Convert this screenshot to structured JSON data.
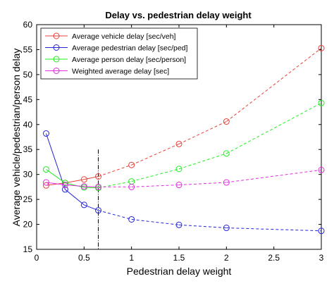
{
  "chart_data": {
    "type": "line",
    "title": "Delay vs. pedestrian delay weight",
    "xlabel": "Pedestrian delay weight",
    "ylabel": "Average vehicle/pedestrian/person delay",
    "xlim": [
      0,
      3
    ],
    "ylim": [
      15,
      60
    ],
    "xticks": [
      0,
      0.5,
      1,
      1.5,
      2,
      2.5,
      3
    ],
    "xtick_labels": [
      "0",
      "0.5",
      "1",
      "1.5",
      "2",
      "2.5",
      "3"
    ],
    "yticks": [
      15,
      20,
      25,
      30,
      35,
      40,
      45,
      50,
      55,
      60
    ],
    "ytick_labels": [
      "15",
      "20",
      "25",
      "30",
      "35",
      "40",
      "45",
      "50",
      "55",
      "60"
    ],
    "grid": false,
    "legend_position": "top-left",
    "vertical_marker_x": 0.65,
    "x": [
      0.1,
      0.3,
      0.5,
      0.65,
      1,
      1.5,
      2,
      3
    ],
    "series": [
      {
        "name": "Average vehicle delay [sec/veh]",
        "color": "#e8413a",
        "values": [
          27.8,
          28.3,
          29.0,
          29.6,
          31.9,
          36.1,
          40.6,
          55.3
        ]
      },
      {
        "name": "Average pedestrian delay [sec/ped]",
        "color": "#2424d8",
        "values": [
          38.2,
          27.0,
          23.9,
          22.8,
          21.0,
          19.9,
          19.3,
          18.7
        ]
      },
      {
        "name": "Average person delay [sec/person]",
        "color": "#22ee22",
        "values": [
          31.0,
          28.3,
          27.4,
          27.3,
          28.6,
          31.1,
          34.2,
          44.3
        ]
      },
      {
        "name": "Weighted average delay [sec]",
        "color": "#e02de0",
        "values": [
          28.4,
          27.9,
          27.6,
          27.5,
          27.5,
          27.9,
          28.4,
          30.9
        ]
      }
    ]
  }
}
